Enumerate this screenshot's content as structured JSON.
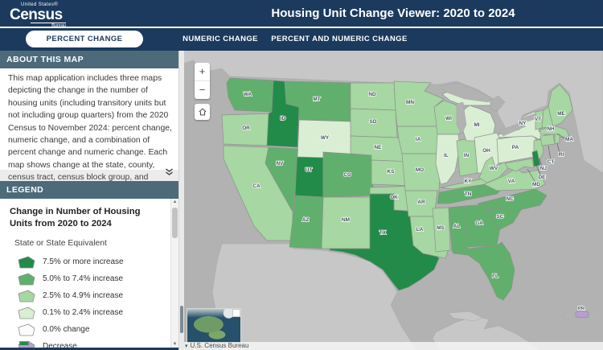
{
  "header": {
    "agency_top": "United States®",
    "agency_main": "Census",
    "agency_bottom": "Bureau",
    "title": "Housing Unit Change Viewer: 2020 to 2024"
  },
  "tabs": [
    {
      "label": "PERCENT CHANGE",
      "active": true
    },
    {
      "label": "NUMERIC CHANGE",
      "active": false
    },
    {
      "label": "PERCENT AND NUMERIC CHANGE",
      "active": false
    }
  ],
  "sidebar": {
    "about": {
      "header": "ABOUT THIS MAP",
      "text": "This map application includes three maps depicting the change in the number of housing units (including transitory units but not including group quarters) from the 2020 Census to November 2024: percent change, numeric change, and a combination of percent change and numeric change. Each map shows change at the state, county, census tract, census block group, and census block levels. Class breaks and the number of classes may expand or contract"
    },
    "legend": {
      "header": "LEGEND",
      "title": "Change in Number of Housing Units from 2020 to 2024",
      "subtitle": "State or State Equivalent",
      "items": [
        {
          "label": "7.5% or more increase",
          "class": "dark"
        },
        {
          "label": "5.0% to 7.4% increase",
          "class": "medium"
        },
        {
          "label": "2.5% to 4.9% increase",
          "class": "light"
        },
        {
          "label": "0.1% to 2.4% increase",
          "class": "very_light"
        },
        {
          "label": "0.0% change",
          "class": "zero"
        },
        {
          "label": "Decrease",
          "class": "decrease"
        }
      ]
    }
  },
  "map": {
    "colors": {
      "dark": "#238b49",
      "medium": "#61af6c",
      "light": "#a7d7a2",
      "very_light": "#daeed4",
      "zero": "#fcfcfa",
      "decrease": "#b89dd4",
      "navy": "#1b3a5d",
      "slate_header": "#4d6a7a",
      "water": "#b2b2b2",
      "foreign_land": "#c7c7c7",
      "border": "#8a938d"
    },
    "states": [
      {
        "abbr": "WA",
        "class": "medium"
      },
      {
        "abbr": "OR",
        "class": "light"
      },
      {
        "abbr": "CA",
        "class": "light"
      },
      {
        "abbr": "ID",
        "class": "dark"
      },
      {
        "abbr": "NV",
        "class": "medium"
      },
      {
        "abbr": "UT",
        "class": "dark"
      },
      {
        "abbr": "AZ",
        "class": "medium"
      },
      {
        "abbr": "MT",
        "class": "medium"
      },
      {
        "abbr": "WY",
        "class": "very_light"
      },
      {
        "abbr": "CO",
        "class": "medium"
      },
      {
        "abbr": "NM",
        "class": "light"
      },
      {
        "abbr": "ND",
        "class": "light"
      },
      {
        "abbr": "SD",
        "class": "light"
      },
      {
        "abbr": "NE",
        "class": "light"
      },
      {
        "abbr": "KS",
        "class": "light"
      },
      {
        "abbr": "OK",
        "class": "light"
      },
      {
        "abbr": "TX",
        "class": "dark"
      },
      {
        "abbr": "MN",
        "class": "light"
      },
      {
        "abbr": "IA",
        "class": "light"
      },
      {
        "abbr": "MO",
        "class": "light"
      },
      {
        "abbr": "AR",
        "class": "light"
      },
      {
        "abbr": "LA",
        "class": "light"
      },
      {
        "abbr": "WI",
        "class": "light"
      },
      {
        "abbr": "IL",
        "class": "very_light"
      },
      {
        "abbr": "IN",
        "class": "light"
      },
      {
        "abbr": "MI",
        "class": "very_light"
      },
      {
        "abbr": "OH",
        "class": "very_light"
      },
      {
        "abbr": "KY",
        "class": "light"
      },
      {
        "abbr": "TN",
        "class": "medium"
      },
      {
        "abbr": "MS",
        "class": "light"
      },
      {
        "abbr": "AL",
        "class": "medium"
      },
      {
        "abbr": "GA",
        "class": "medium"
      },
      {
        "abbr": "FL",
        "class": "medium"
      },
      {
        "abbr": "SC",
        "class": "medium"
      },
      {
        "abbr": "NC",
        "class": "medium"
      },
      {
        "abbr": "VA",
        "class": "light"
      },
      {
        "abbr": "WV",
        "class": "light"
      },
      {
        "abbr": "PA",
        "class": "very_light"
      },
      {
        "abbr": "NY",
        "class": "very_light"
      },
      {
        "abbr": "NJ",
        "class": "light"
      },
      {
        "abbr": "DE",
        "class": "dark"
      },
      {
        "abbr": "MD",
        "class": "light"
      },
      {
        "abbr": "VT",
        "class": "light"
      },
      {
        "abbr": "NH",
        "class": "light"
      },
      {
        "abbr": "MA",
        "class": "light"
      },
      {
        "abbr": "CT",
        "class": "light"
      },
      {
        "abbr": "RI",
        "class": "light"
      },
      {
        "abbr": "ME",
        "class": "light"
      },
      {
        "abbr": "PR",
        "class": "decrease"
      }
    ],
    "controls": {
      "zoom_in": "+",
      "zoom_out": "−",
      "scroll_up": "▲",
      "scroll_down": "▼",
      "attr_arrow": "▾"
    },
    "attribution": "U.S. Census Bureau"
  }
}
